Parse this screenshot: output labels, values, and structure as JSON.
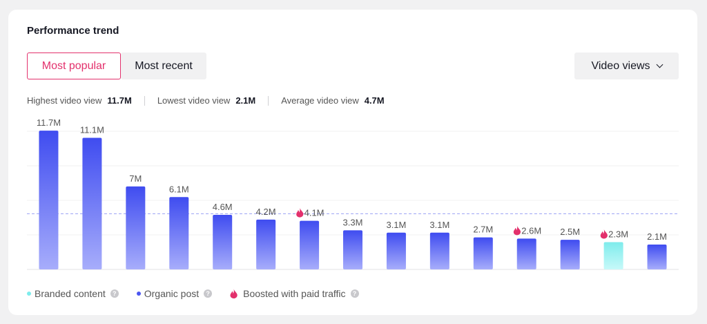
{
  "title": "Performance trend",
  "tabs": [
    {
      "label": "Most popular",
      "active": true
    },
    {
      "label": "Most recent",
      "active": false
    }
  ],
  "metric_dropdown": {
    "label": "Video views",
    "icon": "chevron-down-icon"
  },
  "stats": {
    "highest": {
      "label": "Highest video view",
      "value": "11.7M"
    },
    "lowest": {
      "label": "Lowest video view",
      "value": "2.1M"
    },
    "average": {
      "label": "Average video view",
      "value": "4.7M"
    }
  },
  "legend": {
    "branded": "Branded content",
    "organic": "Organic post",
    "boosted": "Boosted with paid traffic",
    "help_icon": "question-icon",
    "boosted_icon": "flame-icon"
  },
  "colors": {
    "organic_top": "#3f4cf0",
    "organic_bottom": "#a7adfb",
    "branded_top": "#7eecec",
    "branded_bottom": "#c7f9f9",
    "boosted": "#e3306c",
    "accent": "#e3306c",
    "average_line": "#9aa0f5"
  },
  "chart_data": {
    "type": "bar",
    "average": 4.7,
    "ylim": [
      0,
      12
    ],
    "grid": true,
    "bars": [
      {
        "value": 11.7,
        "label": "11.7M",
        "type": "organic",
        "boosted": false
      },
      {
        "value": 11.1,
        "label": "11.1M",
        "type": "organic",
        "boosted": false
      },
      {
        "value": 7.0,
        "label": "7M",
        "type": "organic",
        "boosted": false
      },
      {
        "value": 6.1,
        "label": "6.1M",
        "type": "organic",
        "boosted": false
      },
      {
        "value": 4.6,
        "label": "4.6M",
        "type": "organic",
        "boosted": false
      },
      {
        "value": 4.2,
        "label": "4.2M",
        "type": "organic",
        "boosted": false
      },
      {
        "value": 4.1,
        "label": "4.1M",
        "type": "organic",
        "boosted": true
      },
      {
        "value": 3.3,
        "label": "3.3M",
        "type": "organic",
        "boosted": false
      },
      {
        "value": 3.1,
        "label": "3.1M",
        "type": "organic",
        "boosted": false
      },
      {
        "value": 3.1,
        "label": "3.1M",
        "type": "organic",
        "boosted": false
      },
      {
        "value": 2.7,
        "label": "2.7M",
        "type": "organic",
        "boosted": false
      },
      {
        "value": 2.6,
        "label": "2.6M",
        "type": "organic",
        "boosted": true
      },
      {
        "value": 2.5,
        "label": "2.5M",
        "type": "organic",
        "boosted": false
      },
      {
        "value": 2.3,
        "label": "2.3M",
        "type": "branded",
        "boosted": true
      },
      {
        "value": 2.1,
        "label": "2.1M",
        "type": "organic",
        "boosted": false
      }
    ]
  }
}
